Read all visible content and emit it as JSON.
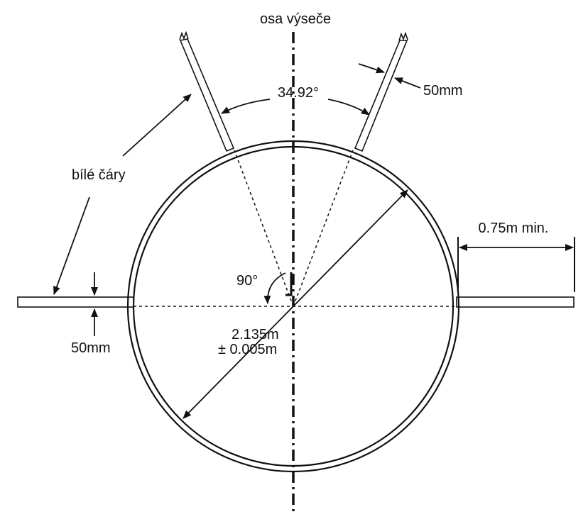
{
  "diagram": {
    "axis_label": "osa výseče",
    "angle_label": "34.92°",
    "width_label_right": "50mm",
    "lines_label": "bílé čáry",
    "clearance_label": "0.75m min.",
    "right_angle_label": "90°",
    "diameter_label_line1": "2.135m",
    "diameter_label_line2": "± 0.005m",
    "width_label_left": "50mm"
  }
}
